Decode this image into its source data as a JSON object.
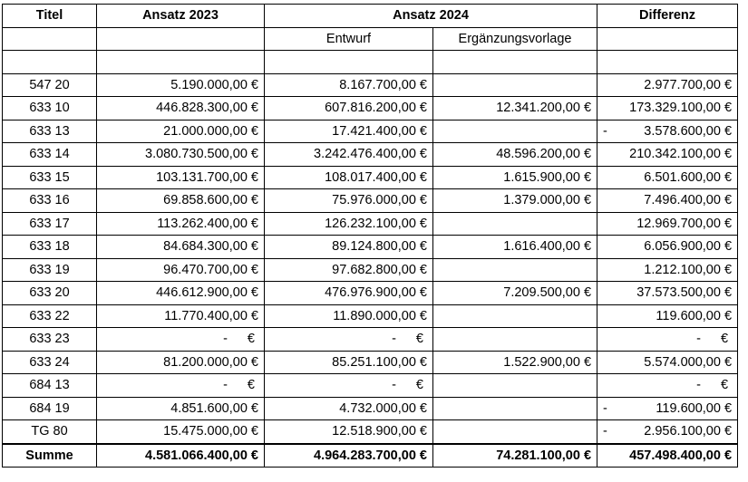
{
  "headers": {
    "titel": "Titel",
    "ansatz2023": "Ansatz 2023",
    "ansatz2024": "Ansatz 2024",
    "differenz": "Differenz",
    "entwurf": "Entwurf",
    "ergaenzung": "Ergänzungsvorlage"
  },
  "rows": [
    {
      "titel": "547 20",
      "a2023": "5.190.000,00 €",
      "entwurf": "8.167.700,00 €",
      "erg": "",
      "diff": "2.977.700,00 €",
      "neg": ""
    },
    {
      "titel": "633 10",
      "a2023": "446.828.300,00 €",
      "entwurf": "607.816.200,00 €",
      "erg": "12.341.200,00 €",
      "diff": "173.329.100,00 €",
      "neg": ""
    },
    {
      "titel": "633 13",
      "a2023": "21.000.000,00 €",
      "entwurf": "17.421.400,00 €",
      "erg": "",
      "diff": "3.578.600,00 €",
      "neg": "-"
    },
    {
      "titel": "633 14",
      "a2023": "3.080.730.500,00 €",
      "entwurf": "3.242.476.400,00 €",
      "erg": "48.596.200,00 €",
      "diff": "210.342.100,00 €",
      "neg": ""
    },
    {
      "titel": "633 15",
      "a2023": "103.131.700,00 €",
      "entwurf": "108.017.400,00 €",
      "erg": "1.615.900,00 €",
      "diff": "6.501.600,00 €",
      "neg": ""
    },
    {
      "titel": "633 16",
      "a2023": "69.858.600,00 €",
      "entwurf": "75.976.000,00 €",
      "erg": "1.379.000,00 €",
      "diff": "7.496.400,00 €",
      "neg": ""
    },
    {
      "titel": "633 17",
      "a2023": "113.262.400,00 €",
      "entwurf": "126.232.100,00 €",
      "erg": "",
      "diff": "12.969.700,00 €",
      "neg": ""
    },
    {
      "titel": "633 18",
      "a2023": "84.684.300,00 €",
      "entwurf": "89.124.800,00 €",
      "erg": "1.616.400,00 €",
      "diff": "6.056.900,00 €",
      "neg": ""
    },
    {
      "titel": "633 19",
      "a2023": "96.470.700,00 €",
      "entwurf": "97.682.800,00 €",
      "erg": "",
      "diff": "1.212.100,00 €",
      "neg": ""
    },
    {
      "titel": "633 20",
      "a2023": "446.612.900,00 €",
      "entwurf": "476.976.900,00 €",
      "erg": "7.209.500,00 €",
      "diff": "37.573.500,00 €",
      "neg": ""
    },
    {
      "titel": "633 22",
      "a2023": "11.770.400,00 €",
      "entwurf": "11.890.000,00 €",
      "erg": "",
      "diff": "119.600,00 €",
      "neg": ""
    },
    {
      "titel": "633 23",
      "a2023": "-",
      "entwurf": "-",
      "erg": "",
      "diff": "-",
      "neg": "",
      "zero": true
    },
    {
      "titel": "633 24",
      "a2023": "81.200.000,00 €",
      "entwurf": "85.251.100,00 €",
      "erg": "1.522.900,00 €",
      "diff": "5.574.000,00 €",
      "neg": ""
    },
    {
      "titel": "684 13",
      "a2023": "-",
      "entwurf": "-",
      "erg": "",
      "diff": "-",
      "neg": "",
      "zero": true
    },
    {
      "titel": "684 19",
      "a2023": "4.851.600,00 €",
      "entwurf": "4.732.000,00 €",
      "erg": "",
      "diff": "119.600,00 €",
      "neg": "-"
    },
    {
      "titel": "TG 80",
      "a2023": "15.475.000,00 €",
      "entwurf": "12.518.900,00 €",
      "erg": "",
      "diff": "2.956.100,00 €",
      "neg": "-"
    }
  ],
  "summe": {
    "titel": "Summe",
    "a2023": "4.581.066.400,00 €",
    "entwurf": "4.964.283.700,00 €",
    "erg": "74.281.100,00 €",
    "diff": "457.498.400,00 €"
  },
  "euro": "€"
}
